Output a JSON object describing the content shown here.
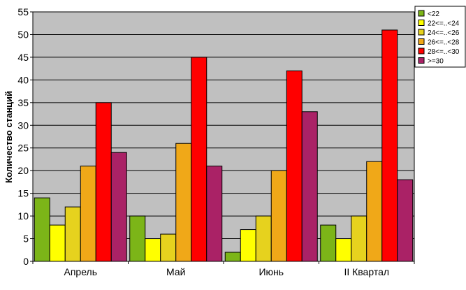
{
  "chart_data": {
    "type": "bar",
    "title": "",
    "xlabel": "",
    "ylabel": "Количество станций",
    "ylim": [
      0,
      55
    ],
    "y_ticks": [
      0,
      5,
      10,
      15,
      20,
      25,
      30,
      35,
      40,
      45,
      50,
      55
    ],
    "grid": true,
    "legend_position": "top-right",
    "categories": [
      "Апрель",
      "Май",
      "Июнь",
      "II Квартал"
    ],
    "series": [
      {
        "name": "<22",
        "color": "#7CB518",
        "values": [
          14,
          10,
          2,
          8
        ]
      },
      {
        "name": "22<=..<24",
        "color": "#FFFF00",
        "values": [
          8,
          5,
          7,
          5
        ]
      },
      {
        "name": "24<=..<26",
        "color": "#E6D21E",
        "values": [
          12,
          6,
          10,
          10
        ]
      },
      {
        "name": "26<=..<28",
        "color": "#F0A818",
        "values": [
          21,
          26,
          20,
          22
        ]
      },
      {
        "name": "28<=..<30",
        "color": "#FF0000",
        "values": [
          35,
          45,
          42,
          51
        ]
      },
      {
        "name": ">=30",
        "color": "#AA2266",
        "values": [
          24,
          21,
          33,
          18
        ]
      }
    ],
    "plot_background": "#C0C0C0"
  }
}
